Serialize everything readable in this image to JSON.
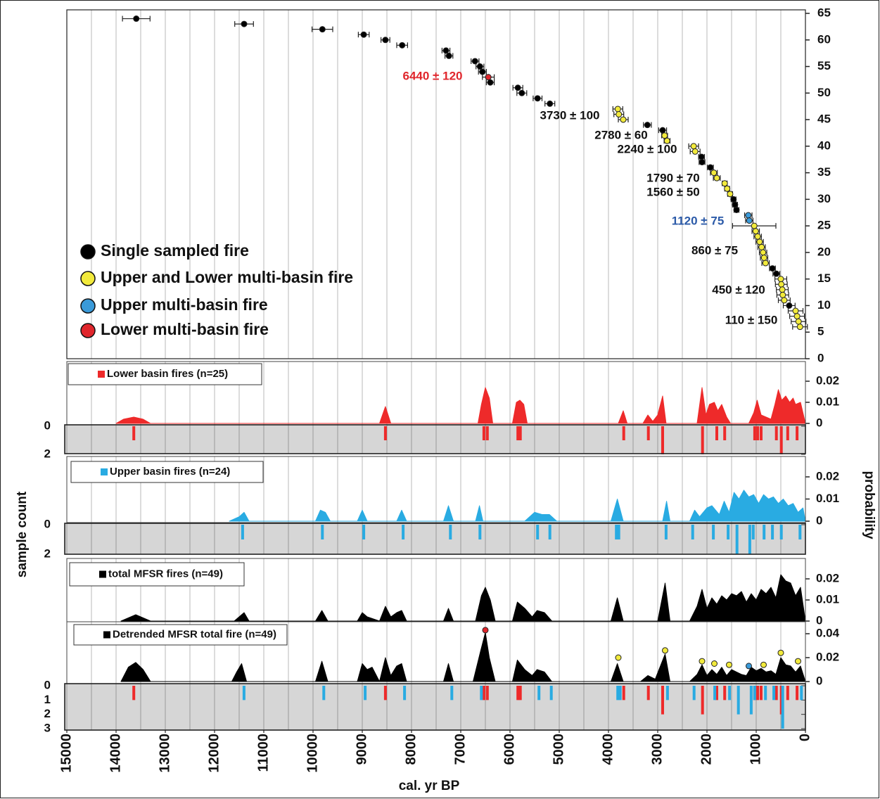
{
  "chart_data": [
    {
      "type": "scatter",
      "xlim": [
        15000,
        0
      ],
      "ylim": [
        0,
        65
      ],
      "yticks": [
        0,
        5,
        10,
        15,
        20,
        25,
        30,
        35,
        40,
        45,
        50,
        55,
        60,
        65
      ],
      "xgrid": [
        15000,
        14500,
        14000,
        13500,
        13000,
        12500,
        12000,
        11500,
        11000,
        10500,
        10000,
        9500,
        9000,
        8500,
        8000,
        7500,
        7000,
        6500,
        6000,
        5500,
        5000,
        4500,
        4000,
        3500,
        3000,
        2500,
        2000,
        1500,
        1000,
        500,
        0
      ],
      "series": [
        {
          "name": "Single sampled fire",
          "color": "#000000",
          "x": [
            13590,
            11400,
            9810,
            8970,
            8530,
            8190,
            7300,
            7240,
            6710,
            6610,
            6560,
            6400,
            5840,
            5760,
            5440,
            5190,
            3210,
            2900,
            2110,
            2100,
            1930,
            1460,
            1430,
            1400,
            670,
            590,
            330
          ],
          "values": [
            64,
            63,
            62,
            61,
            60,
            59,
            58,
            57,
            56,
            55,
            54,
            52,
            51,
            50,
            49,
            48,
            44,
            43,
            38,
            37,
            36,
            30,
            29,
            28,
            17,
            16,
            10
          ],
          "xerr": [
            280,
            190,
            210,
            110,
            90,
            110,
            80,
            80,
            80,
            80,
            80,
            80,
            100,
            100,
            90,
            100,
            80,
            80,
            60,
            60,
            60,
            50,
            50,
            50,
            60,
            70,
            120
          ]
        },
        {
          "name": "Upper and Lower multi-basin fire",
          "color": "#f2ea3c",
          "x": [
            3810,
            3790,
            3700,
            2860,
            2810,
            2270,
            2240,
            1860,
            1800,
            1640,
            1590,
            1530,
            1040,
            1010,
            970,
            930,
            890,
            860,
            840,
            810,
            500,
            490,
            470,
            460,
            430,
            200,
            170,
            140,
            110
          ],
          "values": [
            47,
            46,
            45,
            42,
            41,
            40,
            39,
            35,
            34,
            33,
            32,
            31,
            25,
            24,
            23,
            22,
            21,
            20,
            19,
            18,
            15,
            14,
            13,
            12,
            11,
            9,
            8,
            7,
            6
          ],
          "xerr": [
            100,
            100,
            100,
            60,
            60,
            100,
            100,
            70,
            70,
            50,
            50,
            50,
            440,
            75,
            75,
            75,
            75,
            75,
            75,
            75,
            120,
            120,
            120,
            120,
            120,
            150,
            150,
            150,
            150
          ]
        },
        {
          "name": "Upper multi-basin fire",
          "color": "#3a9ad9",
          "x": [
            1160,
            1140
          ],
          "values": [
            27,
            26
          ],
          "xerr": [
            75,
            75
          ]
        },
        {
          "name": "Lower multi-basin fire",
          "color": "#e0262c",
          "x": [
            6440
          ],
          "values": [
            53
          ],
          "xerr": [
            120
          ]
        }
      ],
      "annotations": [
        {
          "text": "6440 ± 120",
          "color": "#e0262c"
        },
        {
          "text": "3730 ± 100",
          "color": "#111111"
        },
        {
          "text": "2780 ± 60",
          "color": "#111111"
        },
        {
          "text": "2240 ± 100",
          "color": "#111111"
        },
        {
          "text": "1790 ± 70",
          "color": "#111111"
        },
        {
          "text": "1560 ± 50",
          "color": "#111111"
        },
        {
          "text": "1120 ± 75",
          "color": "#2b5aa8"
        },
        {
          "text": "860 ± 75",
          "color": "#111111"
        },
        {
          "text": "450 ± 120",
          "color": "#111111"
        },
        {
          "text": "110 ± 150",
          "color": "#111111"
        }
      ]
    },
    {
      "type": "area",
      "name": "Lower basin fires (n=25)",
      "color": "#ee2a2a",
      "ylim": [
        0,
        0.03
      ],
      "yticks": [
        0,
        0.01,
        0.02
      ],
      "x": [
        14000,
        13850,
        13640,
        13450,
        13300,
        8650,
        8530,
        8420,
        6650,
        6580,
        6500,
        6420,
        6350,
        5950,
        5870,
        5800,
        5720,
        5650,
        3800,
        3700,
        3620,
        3300,
        3200,
        3100,
        3000,
        2900,
        2830,
        2200,
        2100,
        2020,
        1950,
        1850,
        1780,
        1700,
        1600,
        1520,
        1150,
        1050,
        980,
        900,
        800,
        700,
        620,
        550,
        480,
        400,
        320,
        250,
        200,
        100,
        0
      ],
      "values": [
        0,
        0.002,
        0.003,
        0.002,
        0,
        0,
        0.008,
        0,
        0,
        0.009,
        0.017,
        0.012,
        0,
        0,
        0.01,
        0.011,
        0.009,
        0,
        0,
        0.006,
        0,
        0,
        0.004,
        0.001,
        0.004,
        0.013,
        0,
        0,
        0.017,
        0.004,
        0.009,
        0.01,
        0.006,
        0.009,
        0.003,
        0,
        0,
        0.005,
        0.011,
        0.004,
        0.003,
        0.002,
        0.009,
        0.016,
        0.011,
        0.013,
        0.01,
        0.012,
        0.009,
        0.01,
        0
      ]
    },
    {
      "type": "rug",
      "ylim": [
        0,
        2
      ],
      "yticks": [
        0,
        2
      ],
      "series": [
        {
          "color": "#ee2a2a",
          "x": [
            13640,
            8530,
            6530,
            6460,
            5840,
            5790,
            3690,
            3190,
            2900,
            2090,
            1800,
            1640,
            1030,
            970,
            900,
            590,
            490,
            360,
            170
          ],
          "values": [
            1,
            1,
            1,
            1,
            1,
            1,
            1,
            1,
            2,
            2,
            1,
            1,
            1,
            1,
            1,
            1,
            2,
            1,
            1
          ]
        }
      ]
    },
    {
      "type": "area",
      "name": "Upper basin fires (n=24)",
      "color": "#29abe2",
      "ylabel": "probability",
      "ylim": [
        0,
        0.03
      ],
      "yticks": [
        0,
        0.01,
        0.02
      ],
      "x": [
        11700,
        11500,
        11400,
        11300,
        9950,
        9850,
        9750,
        9650,
        9100,
        9000,
        8900,
        8300,
        8200,
        8100,
        7350,
        7250,
        7150,
        6700,
        6620,
        6550,
        5700,
        5500,
        5350,
        5200,
        5050,
        3950,
        3820,
        3700,
        2900,
        2820,
        2750,
        2350,
        2250,
        2150,
        2000,
        1900,
        1750,
        1650,
        1550,
        1450,
        1350,
        1250,
        1150,
        1050,
        950,
        850,
        750,
        650,
        550,
        450,
        350,
        250,
        150,
        50,
        0
      ],
      "values": [
        0,
        0.002,
        0.004,
        0,
        0,
        0.005,
        0.004,
        0,
        0,
        0.005,
        0,
        0,
        0.005,
        0,
        0,
        0.007,
        0,
        0,
        0.007,
        0,
        0,
        0.004,
        0.003,
        0.003,
        0,
        0,
        0.01,
        0,
        0,
        0.009,
        0,
        0,
        0.005,
        0.002,
        0.006,
        0.007,
        0.003,
        0.009,
        0.004,
        0.013,
        0.01,
        0.014,
        0.011,
        0.012,
        0.008,
        0.012,
        0.01,
        0.011,
        0.008,
        0.01,
        0.007,
        0.008,
        0.004,
        0.006,
        0
      ]
    },
    {
      "type": "rug",
      "ylim": [
        0,
        2
      ],
      "yticks": [
        0,
        2
      ],
      "ylabel": "sample count",
      "series": [
        {
          "color": "#29abe2",
          "x": [
            11430,
            9810,
            8970,
            8170,
            7210,
            6610,
            5440,
            5190,
            3840,
            3790,
            2830,
            2290,
            1870,
            1570,
            1390,
            1130,
            1060,
            840,
            670,
            490,
            110
          ],
          "values": [
            1,
            1,
            1,
            1,
            1,
            1,
            1,
            1,
            1,
            1,
            1,
            1,
            1,
            1,
            2,
            2,
            1,
            1,
            1,
            1,
            1
          ]
        }
      ]
    },
    {
      "type": "area",
      "name": "total MFSR fires (n=49)",
      "color": "#000000",
      "ylim": [
        0,
        0.03
      ],
      "yticks": [
        0,
        0.01,
        0.02
      ],
      "x": [
        13900,
        13600,
        13300,
        11600,
        11500,
        11400,
        11300,
        9950,
        9820,
        9700,
        9100,
        9000,
        8900,
        8650,
        8530,
        8420,
        8300,
        8200,
        8100,
        7350,
        7250,
        7150,
        6700,
        6580,
        6500,
        6400,
        6300,
        5950,
        5850,
        5700,
        5550,
        5450,
        5300,
        5150,
        3950,
        3820,
        3700,
        3000,
        2850,
        2750,
        2350,
        2200,
        2100,
        2000,
        1900,
        1800,
        1700,
        1600,
        1500,
        1400,
        1300,
        1200,
        1100,
        1000,
        900,
        800,
        700,
        600,
        500,
        400,
        300,
        200,
        100,
        0
      ],
      "values": [
        0,
        0.003,
        0,
        0,
        0.002,
        0.004,
        0,
        0,
        0.005,
        0,
        0,
        0.004,
        0.002,
        0,
        0.007,
        0.002,
        0.004,
        0.005,
        0,
        0,
        0.006,
        0,
        0,
        0.012,
        0.016,
        0.01,
        0,
        0,
        0.009,
        0.006,
        0.002,
        0.005,
        0.004,
        0,
        0,
        0.011,
        0,
        0,
        0.018,
        0,
        0,
        0.007,
        0.015,
        0.006,
        0.011,
        0.008,
        0.012,
        0.01,
        0.013,
        0.012,
        0.014,
        0.009,
        0.013,
        0.01,
        0.015,
        0.013,
        0.016,
        0.011,
        0.022,
        0.019,
        0.018,
        0.012,
        0.016,
        0
      ]
    },
    {
      "type": "area",
      "name": "Detrended MFSR total fire (n=49)",
      "color": "#000000",
      "ylim": [
        0,
        0.05
      ],
      "yticks": [
        0,
        0.02,
        0.04
      ],
      "x": [
        13900,
        13750,
        13600,
        13450,
        13300,
        11650,
        11550,
        11450,
        11350,
        9950,
        9820,
        9700,
        9100,
        9000,
        8900,
        8800,
        8650,
        8530,
        8420,
        8300,
        8200,
        8100,
        7350,
        7250,
        7150,
        6750,
        6600,
        6500,
        6420,
        6300,
        5950,
        5850,
        5700,
        5550,
        5450,
        5300,
        5150,
        3950,
        3820,
        3700,
        3350,
        3200,
        3050,
        2850,
        2750,
        2350,
        2200,
        2100,
        2000,
        1900,
        1800,
        1700,
        1600,
        1500,
        1400,
        1300,
        1200,
        1100,
        1000,
        900,
        800,
        700,
        600,
        500,
        400,
        300,
        200,
        100,
        0
      ],
      "values": [
        0,
        0.012,
        0.016,
        0.01,
        0,
        0,
        0.008,
        0.015,
        0,
        0,
        0.017,
        0,
        0,
        0.015,
        0.01,
        0.012,
        0,
        0.02,
        0.005,
        0.013,
        0.015,
        0,
        0,
        0.015,
        0,
        0,
        0.025,
        0.041,
        0.02,
        0,
        0,
        0.018,
        0.01,
        0.005,
        0.01,
        0.008,
        0,
        0,
        0.015,
        0,
        0,
        0.005,
        0.002,
        0.023,
        0,
        0,
        0.006,
        0.014,
        0.005,
        0.01,
        0.006,
        0.012,
        0.005,
        0.01,
        0.008,
        0.006,
        0.005,
        0.012,
        0.009,
        0.011,
        0.008,
        0.009,
        0.006,
        0.02,
        0.014,
        0.013,
        0.008,
        0.013,
        0
      ],
      "peaks": {
        "x": [
          6500,
          3800,
          2850,
          2100,
          1850,
          1550,
          1150,
          850,
          500,
          150
        ],
        "values": [
          0.043,
          0.02,
          0.026,
          0.017,
          0.015,
          0.014,
          0.013,
          0.014,
          0.024,
          0.017
        ],
        "colors": [
          "#e0262c",
          "#f2ea3c",
          "#f2ea3c",
          "#f2ea3c",
          "#f2ea3c",
          "#f2ea3c",
          "#3a9ad9",
          "#f2ea3c",
          "#f2ea3c",
          "#f2ea3c"
        ]
      }
    },
    {
      "type": "rug",
      "ylim": [
        0,
        3
      ],
      "yticks": [
        0,
        1,
        2,
        3
      ],
      "xticks": [
        15000,
        14000,
        13000,
        12000,
        11000,
        10000,
        9000,
        8000,
        7000,
        6000,
        5000,
        4000,
        3000,
        2000,
        1000,
        0
      ],
      "xlabel": "cal. yr BP",
      "series": [
        {
          "color": "#ee2a2a",
          "x": [
            13640,
            8530,
            6530,
            6460,
            5840,
            5790,
            3690,
            3190,
            2900,
            2090,
            1800,
            1640,
            1030,
            970,
            900,
            590,
            490,
            360,
            170
          ],
          "values": [
            1,
            1,
            1,
            1,
            1,
            1,
            1,
            1,
            2,
            2,
            1,
            1,
            1,
            1,
            1,
            1,
            2,
            1,
            1
          ]
        },
        {
          "color": "#29abe2",
          "x": [
            11430,
            9810,
            8970,
            8170,
            7210,
            6610,
            5440,
            5190,
            3840,
            3790,
            2830,
            2290,
            1870,
            1570,
            1390,
            1130,
            1060,
            840,
            670,
            490,
            110
          ],
          "values": [
            1,
            1,
            1,
            1,
            1,
            1,
            1,
            1,
            1,
            1,
            1,
            1,
            1,
            1,
            2,
            2,
            1,
            1,
            1,
            3,
            1
          ]
        }
      ]
    }
  ]
}
